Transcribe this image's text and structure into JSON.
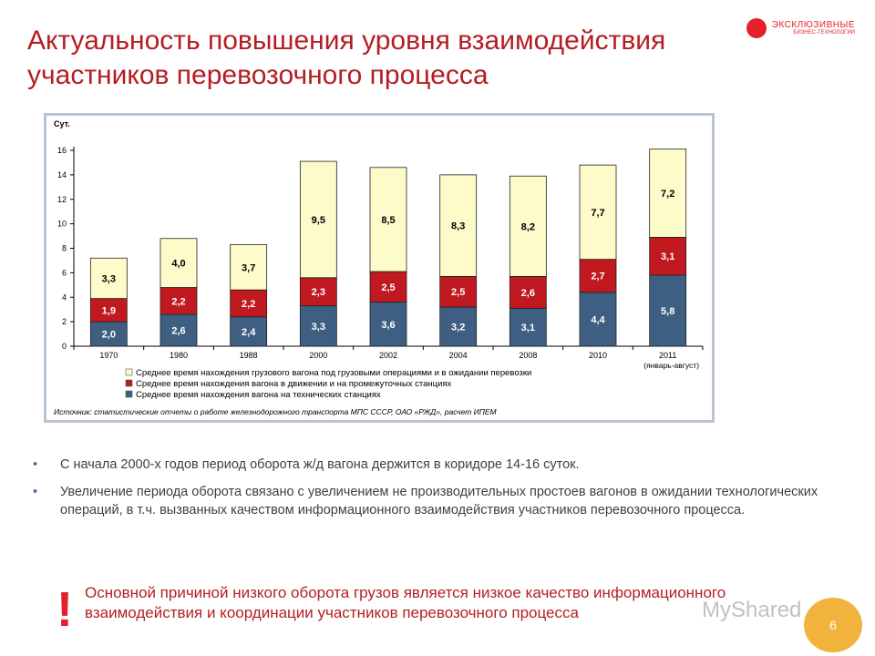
{
  "slide": {
    "title": "Актуальность повышения уровня взаимодействия участников перевозочного процесса",
    "logo_text": "ЭКСКЛЮЗИВНЫЕ",
    "logo_subtext": "БИЗНЕС-ТЕХНОЛОГИИ",
    "bullets": [
      "С начала 2000-х годов период оборота ж/д вагона держится в коридоре 14-16 суток.",
      "Увеличение периода оборота связано с увеличением не производительных простоев вагонов в ожидании технологических операций, в т.ч. вызванных качеством информационного взаимодействия участников перевозочного процесса."
    ],
    "exclamation": "!",
    "conclusion": "Основной причиной низкого оборота грузов является низкое качество информационного взаимодействия и координации участников перевозочного процесса",
    "page_number": "6",
    "watermark": "MyShared"
  },
  "chart_data": {
    "type": "bar",
    "stacked": true,
    "ylabel": "Сут.",
    "ylim": [
      0,
      16
    ],
    "yticks": [
      "0",
      "2",
      "4",
      "6",
      "8",
      "10",
      "12",
      "14",
      "16"
    ],
    "categories": [
      "1970",
      "1980",
      "1988",
      "2000",
      "2002",
      "2004",
      "2008",
      "2010",
      "2011"
    ],
    "category_note": "(январь-август)",
    "series": [
      {
        "name": "Среднее время нахождения вагона на технических станциях",
        "color": "#3f5f82",
        "values": [
          2.0,
          2.6,
          2.4,
          3.3,
          3.6,
          3.2,
          3.1,
          4.4,
          5.8
        ],
        "labels": [
          "2,0",
          "2,6",
          "2,4",
          "3,3",
          "3,6",
          "3,2",
          "3,1",
          "4,4",
          "5,8"
        ]
      },
      {
        "name": "Среднее время нахождения вагона в движении и на промежуточных станциях",
        "color": "#c0191f",
        "values": [
          1.9,
          2.2,
          2.2,
          2.3,
          2.5,
          2.5,
          2.6,
          2.7,
          3.1
        ],
        "labels": [
          "1,9",
          "2,2",
          "2,2",
          "2,3",
          "2,5",
          "2,5",
          "2,6",
          "2,7",
          "3,1"
        ]
      },
      {
        "name": "Среднее время нахождения грузового вагона под грузовыми операциями и в ожидании перевозки",
        "color": "#fdfbc9",
        "values": [
          3.3,
          4.0,
          3.7,
          9.5,
          8.5,
          8.3,
          8.2,
          7.7,
          7.2
        ],
        "labels": [
          "3,3",
          "4,0",
          "3,7",
          "9,5",
          "8,5",
          "8,3",
          "8,2",
          "7,7",
          "7,2"
        ]
      }
    ],
    "legend_order": [
      2,
      1,
      0
    ],
    "legend_position": "bottom",
    "source": "Источник: статистические отчеты о работе железнодорожного транспорта МПС СССР, ОАО «РЖД», расчет ИПЕМ"
  }
}
